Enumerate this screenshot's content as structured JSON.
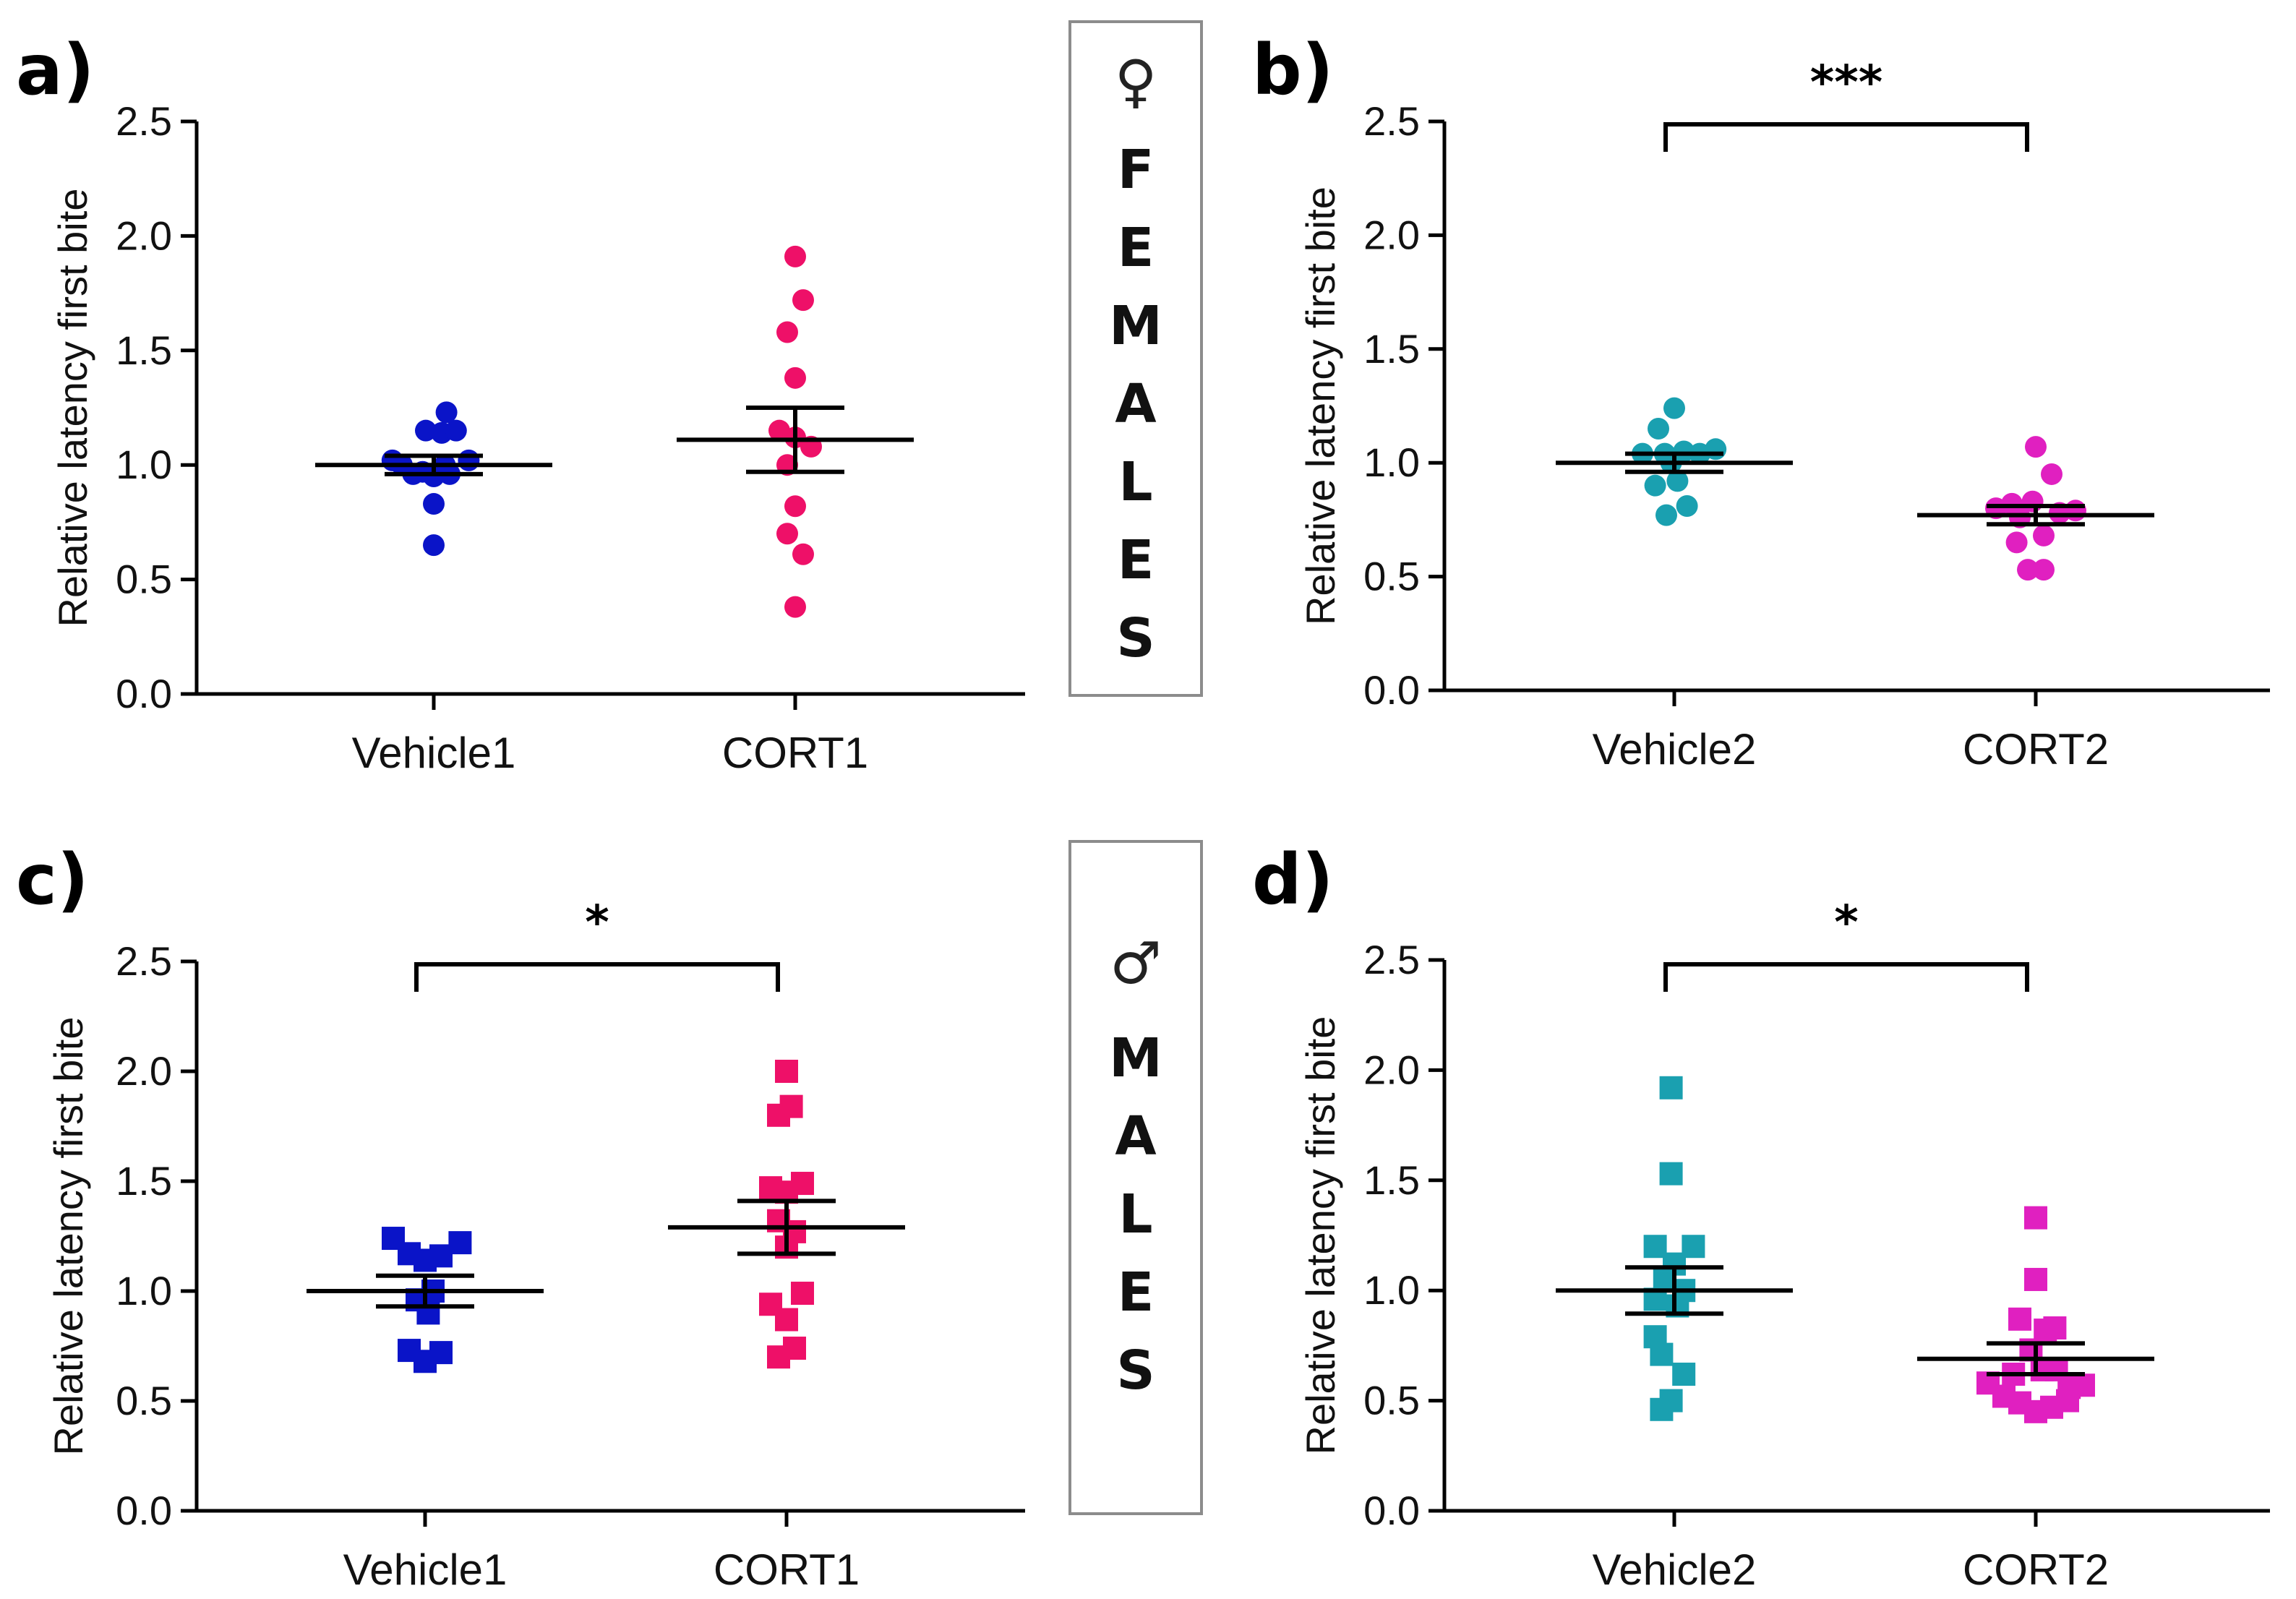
{
  "labels": {
    "females_symbol": "♀",
    "females_text": "FEMALES",
    "males_symbol": "♂",
    "males_text": "MALES"
  },
  "chart_data": [
    {
      "id": "a",
      "panel_label": "a)",
      "type": "scatter",
      "marker": "circle",
      "ylabel": "Relative latency first bite",
      "xlabel": "",
      "ylim": [
        0,
        2.5
      ],
      "yticks": [
        "0.0",
        "0.5",
        "1.0",
        "1.5",
        "2.0",
        "2.5"
      ],
      "categories": [
        "Vehicle1",
        "CORT1"
      ],
      "significance": "",
      "series": [
        {
          "name": "Vehicle1",
          "color": "#0a14c8",
          "mean": 1.0,
          "sem": 0.04,
          "points": [
            [
              0.08,
              1.23
            ],
            [
              -0.26,
              1.02
            ],
            [
              -0.2,
              1.0
            ],
            [
              -0.13,
              0.96
            ],
            [
              -0.05,
              1.15
            ],
            [
              0.05,
              1.14
            ],
            [
              0.14,
              1.15
            ],
            [
              -0.07,
              0.97
            ],
            [
              0.0,
              0.95
            ],
            [
              0.1,
              0.96
            ],
            [
              0.22,
              1.02
            ],
            [
              0.0,
              0.83
            ],
            [
              0.0,
              0.65
            ],
            [
              0.07,
              1.0
            ]
          ]
        },
        {
          "name": "CORT1",
          "color": "#ee1068",
          "mean": 1.11,
          "sem": 0.14,
          "points": [
            [
              0.0,
              1.91
            ],
            [
              0.05,
              1.72
            ],
            [
              -0.05,
              1.58
            ],
            [
              0.0,
              1.38
            ],
            [
              -0.1,
              1.15
            ],
            [
              0.0,
              1.12
            ],
            [
              0.1,
              1.08
            ],
            [
              -0.05,
              1.0
            ],
            [
              0.0,
              0.82
            ],
            [
              -0.05,
              0.7
            ],
            [
              0.05,
              0.61
            ],
            [
              0.0,
              0.38
            ]
          ]
        }
      ]
    },
    {
      "id": "b",
      "panel_label": "b)",
      "type": "scatter",
      "marker": "circle",
      "ylabel": "Relative latency first bite",
      "xlabel": "",
      "ylim": [
        0,
        2.5
      ],
      "yticks": [
        "0.0",
        "0.5",
        "1.0",
        "1.5",
        "2.0",
        "2.5"
      ],
      "categories": [
        "Vehicle2",
        "CORT2"
      ],
      "significance": "***",
      "series": [
        {
          "name": "Vehicle2",
          "color": "#1aa0b0",
          "mean": 1.0,
          "sem": 0.04,
          "points": [
            [
              0.0,
              1.24
            ],
            [
              -0.1,
              1.15
            ],
            [
              -0.2,
              1.04
            ],
            [
              -0.06,
              1.04
            ],
            [
              0.06,
              1.05
            ],
            [
              0.16,
              1.04
            ],
            [
              0.26,
              1.06
            ],
            [
              -0.02,
              1.0
            ],
            [
              -0.12,
              0.9
            ],
            [
              0.02,
              0.92
            ],
            [
              -0.05,
              0.77
            ],
            [
              0.08,
              0.81
            ]
          ]
        },
        {
          "name": "CORT2",
          "color": "#e020c0",
          "mean": 0.77,
          "sem": 0.04,
          "points": [
            [
              0.0,
              1.07
            ],
            [
              -0.15,
              0.82
            ],
            [
              -0.25,
              0.8
            ],
            [
              -0.1,
              0.76
            ],
            [
              0.1,
              0.95
            ],
            [
              -0.02,
              0.83
            ],
            [
              0.15,
              0.78
            ],
            [
              0.25,
              0.79
            ],
            [
              0.05,
              0.68
            ],
            [
              -0.12,
              0.65
            ],
            [
              -0.05,
              0.53
            ],
            [
              0.05,
              0.53
            ]
          ]
        }
      ]
    },
    {
      "id": "c",
      "panel_label": "c)",
      "type": "scatter",
      "marker": "square",
      "ylabel": "Relative latency first bite",
      "xlabel": "",
      "ylim": [
        0,
        2.5
      ],
      "yticks": [
        "0.0",
        "0.5",
        "1.0",
        "1.5",
        "2.0",
        "2.5"
      ],
      "categories": [
        "Vehicle1",
        "CORT1"
      ],
      "significance": "*",
      "series": [
        {
          "name": "Vehicle1",
          "color": "#0a14c8",
          "mean": 1.0,
          "sem": 0.07,
          "points": [
            [
              -0.2,
              1.24
            ],
            [
              -0.1,
              1.17
            ],
            [
              0.0,
              1.14
            ],
            [
              0.1,
              1.16
            ],
            [
              0.22,
              1.22
            ],
            [
              -0.05,
              0.96
            ],
            [
              0.05,
              1.0
            ],
            [
              0.02,
              0.9
            ],
            [
              -0.1,
              0.73
            ],
            [
              0.0,
              0.68
            ],
            [
              0.1,
              0.72
            ]
          ]
        },
        {
          "name": "CORT1",
          "color": "#ee1068",
          "mean": 1.29,
          "sem": 0.12,
          "points": [
            [
              0.0,
              2.0
            ],
            [
              0.03,
              1.84
            ],
            [
              -0.05,
              1.8
            ],
            [
              -0.1,
              1.47
            ],
            [
              0.0,
              1.45
            ],
            [
              0.1,
              1.49
            ],
            [
              -0.05,
              1.32
            ],
            [
              0.05,
              1.27
            ],
            [
              0.0,
              1.2
            ],
            [
              -0.1,
              0.94
            ],
            [
              0.1,
              0.99
            ],
            [
              0.0,
              0.87
            ],
            [
              -0.05,
              0.7
            ],
            [
              0.05,
              0.74
            ]
          ]
        }
      ]
    },
    {
      "id": "d",
      "panel_label": "d)",
      "type": "scatter",
      "marker": "square",
      "ylabel": "Relative latency first bite",
      "xlabel": "",
      "ylim": [
        0,
        2.5
      ],
      "yticks": [
        "0.0",
        "0.5",
        "1.0",
        "1.5",
        "2.0",
        "2.5"
      ],
      "categories": [
        "Vehicle2",
        "CORT2"
      ],
      "significance": "*",
      "series": [
        {
          "name": "Vehicle2",
          "color": "#1aa0b0",
          "mean": 1.0,
          "sem": 0.105,
          "points": [
            [
              -0.02,
              1.92
            ],
            [
              -0.02,
              1.53
            ],
            [
              -0.12,
              1.2
            ],
            [
              0.0,
              1.12
            ],
            [
              0.12,
              1.2
            ],
            [
              -0.06,
              1.06
            ],
            [
              0.06,
              1.0
            ],
            [
              -0.12,
              0.96
            ],
            [
              0.02,
              0.93
            ],
            [
              -0.12,
              0.79
            ],
            [
              -0.08,
              0.71
            ],
            [
              0.06,
              0.62
            ],
            [
              -0.02,
              0.5
            ],
            [
              -0.08,
              0.46
            ]
          ]
        },
        {
          "name": "CORT2",
          "color": "#e020c0",
          "mean": 0.69,
          "sem": 0.07,
          "points": [
            [
              0.0,
              1.33
            ],
            [
              0.0,
              1.05
            ],
            [
              -0.1,
              0.87
            ],
            [
              0.06,
              0.82
            ],
            [
              0.12,
              0.83
            ],
            [
              -0.03,
              0.73
            ],
            [
              0.04,
              0.64
            ],
            [
              -0.14,
              0.62
            ],
            [
              0.13,
              0.64
            ],
            [
              -0.3,
              0.58
            ],
            [
              0.21,
              0.56
            ],
            [
              -0.2,
              0.52
            ],
            [
              0.3,
              0.57
            ],
            [
              -0.1,
              0.49
            ],
            [
              0.0,
              0.45
            ],
            [
              0.1,
              0.47
            ],
            [
              0.2,
              0.5
            ]
          ]
        }
      ]
    }
  ]
}
